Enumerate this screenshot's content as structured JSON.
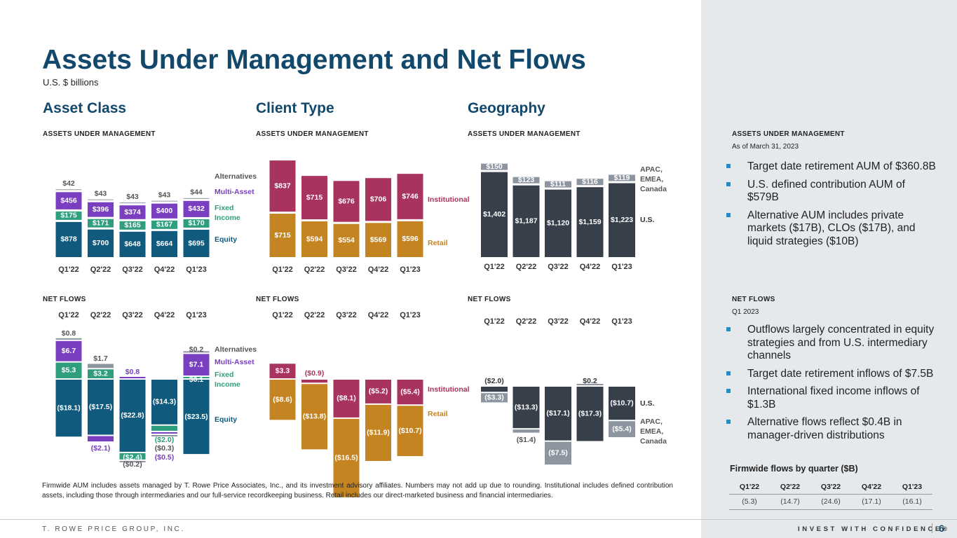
{
  "title": "Assets Under Management and Net Flows",
  "subtitle": "U.S. $ billions",
  "sections": {
    "asset_class": "Asset Class",
    "client_type": "Client Type",
    "geography": "Geography"
  },
  "labels": {
    "aum": "ASSETS UNDER MANAGEMENT",
    "net_flows": "NET FLOWS"
  },
  "colors": {
    "equity": "#0f5a7d",
    "fixed_income": "#2f9e7e",
    "multi_asset": "#7a3fc1",
    "alternatives": "#8c95a0",
    "institutional": "#a8335e",
    "retail": "#c38421",
    "us": "#363f4a",
    "apac": "#8c95a0",
    "navy": "#12486b",
    "bullet": "#1d8fc4"
  },
  "chart_data": [
    {
      "id": "asset_class_aum",
      "type": "bar",
      "stacked": true,
      "categories": [
        "Q1'22",
        "Q2'22",
        "Q3'22",
        "Q4'22",
        "Q1'23"
      ],
      "series": [
        {
          "name": "Equity",
          "values": [
            878,
            700,
            648,
            664,
            695
          ],
          "labels": [
            "$878",
            "$700",
            "$648",
            "$664",
            "$695"
          ]
        },
        {
          "name": "Fixed Income",
          "values": [
            175,
            171,
            165,
            167,
            170
          ],
          "labels": [
            "$175",
            "$171",
            "$165",
            "$167",
            "$170"
          ]
        },
        {
          "name": "Multi-Asset",
          "values": [
            456,
            396,
            374,
            400,
            432
          ],
          "labels": [
            "$456",
            "$396",
            "$374",
            "$400",
            "$432"
          ]
        },
        {
          "name": "Alternatives",
          "values": [
            42,
            43,
            43,
            43,
            44
          ],
          "labels": [
            "$42",
            "$43",
            "$43",
            "$43",
            "$44"
          ]
        }
      ],
      "legend": [
        "Alternatives",
        "Multi-Asset",
        "Fixed Income",
        "Equity"
      ]
    },
    {
      "id": "client_type_aum",
      "type": "bar",
      "stacked": true,
      "categories": [
        "Q1'22",
        "Q2'22",
        "Q3'22",
        "Q4'22",
        "Q1'23"
      ],
      "series": [
        {
          "name": "Retail",
          "values": [
            715,
            594,
            554,
            569,
            596
          ],
          "labels": [
            "$715",
            "$594",
            "$554",
            "$569",
            "$596"
          ]
        },
        {
          "name": "Institutional",
          "values": [
            837,
            715,
            676,
            706,
            746
          ],
          "labels": [
            "$837",
            "$715",
            "$676",
            "$706",
            "$746"
          ]
        }
      ],
      "legend": [
        "Institutional",
        "Retail"
      ]
    },
    {
      "id": "geography_aum",
      "type": "bar",
      "stacked": true,
      "categories": [
        "Q1'22",
        "Q2'22",
        "Q3'22",
        "Q4'22",
        "Q1'23"
      ],
      "series": [
        {
          "name": "U.S.",
          "values": [
            1402,
            1187,
            1120,
            1159,
            1223
          ],
          "labels": [
            "$1,402",
            "$1,187",
            "$1,120",
            "$1,159",
            "$1,223"
          ]
        },
        {
          "name": "APAC, EMEA, Canada",
          "values": [
            150,
            123,
            111,
            116,
            119
          ],
          "labels": [
            "$150",
            "$123",
            "$111",
            "$116",
            "$119"
          ]
        }
      ],
      "legend": [
        "APAC, EMEA, Canada",
        "U.S."
      ]
    },
    {
      "id": "asset_class_flows",
      "type": "bar",
      "stacked": true,
      "categories": [
        "Q1'22",
        "Q2'22",
        "Q3'22",
        "Q4'22",
        "Q1'23"
      ],
      "series": [
        {
          "name": "Equity",
          "values": [
            -18.1,
            -17.5,
            -22.8,
            -14.3,
            -23.5
          ],
          "labels": [
            "($18.1)",
            "($17.5)",
            "($22.8)",
            "($14.3)",
            "($23.5)"
          ]
        },
        {
          "name": "Fixed Income",
          "values": [
            5.3,
            3.2,
            -2.4,
            -2.0,
            0.1
          ],
          "labels": [
            "$5.3",
            "$3.2",
            "($2.4)",
            "($2.0)",
            "$0.1"
          ]
        },
        {
          "name": "Multi-Asset",
          "values": [
            6.7,
            -2.1,
            0.8,
            -0.5,
            7.1
          ],
          "labels": [
            "$6.7",
            "($2.1)",
            "$0.8",
            "($0.5)",
            "$7.1"
          ]
        },
        {
          "name": "Alternatives",
          "values": [
            0.8,
            1.7,
            -0.2,
            -0.3,
            0.2
          ],
          "labels": [
            "$0.8",
            "$1.7",
            "($0.2)",
            "($0.3)",
            "$0.2"
          ]
        }
      ],
      "legend": [
        "Alternatives",
        "Multi-Asset",
        "Fixed Income",
        "Equity"
      ]
    },
    {
      "id": "client_type_flows",
      "type": "bar",
      "stacked": true,
      "categories": [
        "Q1'22",
        "Q2'22",
        "Q3'22",
        "Q4'22",
        "Q1'23"
      ],
      "series": [
        {
          "name": "Institutional",
          "values": [
            3.3,
            -0.9,
            -8.1,
            -5.2,
            -5.4
          ],
          "labels": [
            "$3.3",
            "($0.9)",
            "($8.1)",
            "($5.2)",
            "($5.4)"
          ]
        },
        {
          "name": "Retail",
          "values": [
            -8.6,
            -13.8,
            -16.5,
            -11.9,
            -10.7
          ],
          "labels": [
            "($8.6)",
            "($13.8)",
            "($16.5)",
            "($11.9)",
            "($10.7)"
          ]
        }
      ],
      "legend": [
        "Institutional",
        "Retail"
      ]
    },
    {
      "id": "geography_flows",
      "type": "bar",
      "stacked": true,
      "categories": [
        "Q1'22",
        "Q2'22",
        "Q3'22",
        "Q4'22",
        "Q1'23"
      ],
      "series": [
        {
          "name": "U.S.",
          "values": [
            -2.0,
            -13.3,
            -17.1,
            -17.3,
            -10.7
          ],
          "labels": [
            "($2.0)",
            "($13.3)",
            "($17.1)",
            "($17.3)",
            "($10.7)"
          ]
        },
        {
          "name": "APAC, EMEA, Canada",
          "values": [
            -3.3,
            -1.4,
            -7.5,
            0.2,
            -5.4
          ],
          "labels": [
            "($3.3)",
            "($1.4)",
            "($7.5)",
            "$0.2",
            "($5.4)"
          ]
        }
      ],
      "legend": [
        "U.S.",
        "APAC, EMEA, Canada"
      ]
    }
  ],
  "right_panel": {
    "aum_heading": "ASSETS UNDER MANAGEMENT",
    "aum_date": "As of March 31, 2023",
    "aum_bullets": [
      "Target date retirement AUM of $360.8B",
      "U.S. defined contribution AUM of $579B",
      "Alternative AUM includes private markets ($17B), CLOs ($17B), and liquid strategies ($10B)"
    ],
    "flows_heading": "NET FLOWS",
    "flows_date": "Q1 2023",
    "flows_bullets": [
      "Outflows largely concentrated in equity strategies and from U.S. intermediary channels",
      "Target date retirement inflows of $7.5B",
      "International fixed income inflows of $1.3B",
      "Alternative flows reflect $0.4B in manager-driven distributions"
    ],
    "firmwide_title": "Firmwide flows by quarter ($B)",
    "firmwide_headers": [
      "Q1'22",
      "Q2'22",
      "Q3'22",
      "Q4'22",
      "Q1'23"
    ],
    "firmwide_values": [
      "(5.3)",
      "(14.7)",
      "(24.6)",
      "(17.1)",
      "(16.1)"
    ]
  },
  "footnote": "Firmwide AUM includes assets managed by T. Rowe Price Associates, Inc., and its investment advisory affiliates. Numbers may not add up due to rounding. Institutional includes defined contribution assets, including those through intermediaries and our full-service recordkeeping business. Retail includes our direct-marketed business and financial intermediaries.",
  "footer": {
    "company": "T. ROWE PRICE GROUP, INC.",
    "tagline": "INVEST WITH CONFIDENCE®",
    "page": "6"
  }
}
